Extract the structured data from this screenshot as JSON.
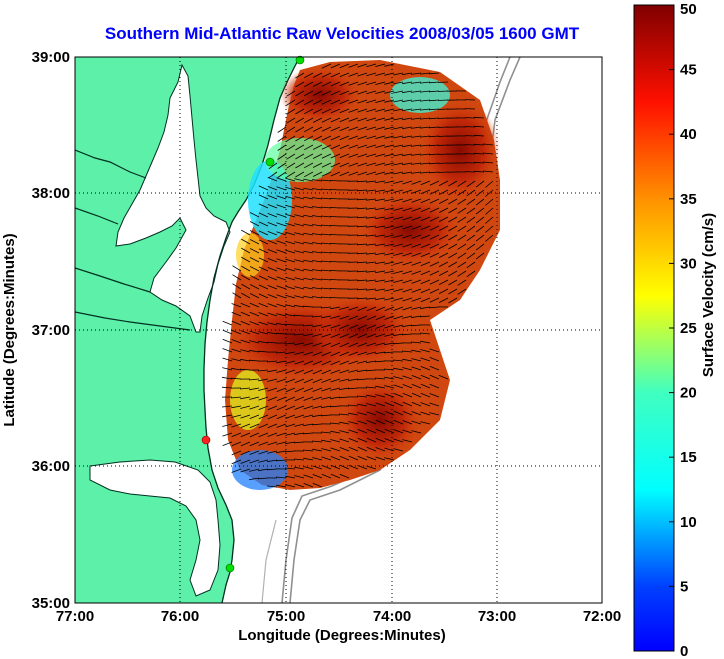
{
  "title": "Southern Mid-Atlantic Raw Velocities 2008/03/05 1600 GMT",
  "map": {
    "x_label": "Longitude (Degrees:Minutes)",
    "y_label": "Latitude (Degrees:Minutes)",
    "x_ticks": [
      "77:00",
      "76:00",
      "75:00",
      "74:00",
      "73:00",
      "72:00"
    ],
    "y_ticks": [
      "39:00",
      "38:00",
      "37:00",
      "36:00",
      "35:00"
    ],
    "lon_range": [
      -77,
      -72
    ],
    "lat_range": [
      35,
      39
    ],
    "land_color": "#5df0a8",
    "grid": "dotted"
  },
  "colorbar": {
    "label": "Surface Velocity (cm/s)",
    "ticks": [
      "50",
      "45",
      "40",
      "35",
      "30",
      "25",
      "20",
      "15",
      "10",
      "5",
      "0"
    ],
    "range": [
      0,
      50
    ],
    "colormap": "jet"
  },
  "stations": [
    {
      "color": "#00e000"
    },
    {
      "color": "#00e000"
    },
    {
      "color": "#ff2020"
    },
    {
      "color": "#00e000"
    }
  ]
}
